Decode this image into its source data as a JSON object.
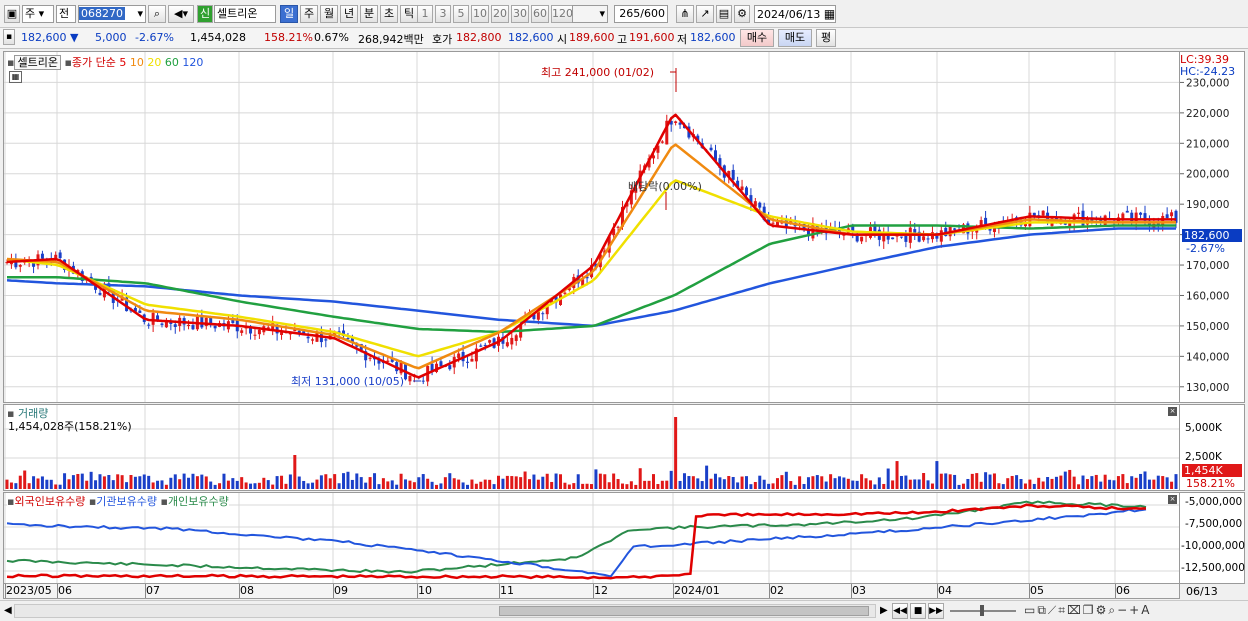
{
  "toolbar": {
    "market_type": "주",
    "prev_label": "전",
    "stock_code": "068270",
    "new_badge": "신",
    "stock_name": "셀트리온",
    "periods": [
      "일",
      "주",
      "월",
      "년",
      "분",
      "초",
      "틱"
    ],
    "selected_period": "일",
    "intervals": [
      "1",
      "3",
      "5",
      "10",
      "20",
      "30",
      "60",
      "120"
    ],
    "count": "265",
    "count_total": "/600",
    "date": "2024/06/13"
  },
  "quote": {
    "price": "182,600",
    "change": "5,000",
    "change_pct": "-2.67%",
    "volume": "1,454,028",
    "volume_ratio": "158.21%",
    "turnover": "0.67%",
    "amount": "268,942백만",
    "bid_label": "호가",
    "bid": "182,800",
    "ask": "182,600",
    "open_label": "시",
    "open": "189,600",
    "high_label": "고",
    "high": "191,600",
    "low_label": "저",
    "low": "182,600",
    "buy_label": "매수",
    "sell_label": "매도",
    "avg_label": "평"
  },
  "price_panel": {
    "title": "셀트리온",
    "ma_title": "종가 단순",
    "ma_periods": [
      "5",
      "10",
      "20",
      "60",
      "120"
    ],
    "ma_colors": [
      "#e00000",
      "#f08a10",
      "#f0e000",
      "#21a040",
      "#2255dd"
    ],
    "lc": "LC:39.39",
    "hc": "HC:-24.23",
    "high_note": "최고 241,000 (01/02)",
    "low_note": "최저 131,000 (10/05)",
    "dividend_note": "배당락(0.00%)",
    "last_price": "182,600",
    "last_pct": "-2.67%",
    "y_ticks": [
      "230,000",
      "220,000",
      "210,000",
      "200,000",
      "190,000",
      "180,000",
      "170,000",
      "160,000",
      "150,000",
      "140,000",
      "130,000"
    ]
  },
  "volume_panel": {
    "title": "거래량",
    "info": "1,454,028주(158.21%)",
    "y_ticks": [
      "5,000K",
      "2,500K"
    ],
    "last_label": "1,454K",
    "last_pct": "158.21%"
  },
  "holdings_panel": {
    "series_labels": [
      "외국인보유수량",
      "기관보유수량",
      "개인보유수량"
    ],
    "series_colors": [
      "#e00000",
      "#2255dd",
      "#2a8a4a"
    ],
    "y_ticks": [
      "-5,000,000",
      "-7,500,000",
      "-10,000,000",
      "-12,500,000"
    ]
  },
  "x_axis": {
    "labels": [
      "2023/05",
      "06",
      "07",
      "08",
      "09",
      "10",
      "11",
      "12",
      "2024/01",
      "02",
      "03",
      "04",
      "05",
      "06"
    ],
    "last_date": "06/13"
  },
  "chart_data": {
    "type": "line",
    "title": "셀트리온",
    "x": [
      "2023/05",
      "06",
      "07",
      "08",
      "09",
      "10",
      "11",
      "12",
      "2024/01",
      "02",
      "03",
      "04",
      "05",
      "06"
    ],
    "ylim": [
      125000,
      240000
    ],
    "series": [
      {
        "name": "5",
        "values": [
          171000,
          172000,
          152000,
          150000,
          146000,
          133000,
          145000,
          170000,
          220000,
          183000,
          180000,
          180000,
          186000,
          185000
        ]
      },
      {
        "name": "10",
        "values": [
          172000,
          171000,
          155000,
          152000,
          147000,
          136000,
          148000,
          168000,
          210000,
          185000,
          180000,
          180000,
          185000,
          184000
        ]
      },
      {
        "name": "20",
        "values": [
          172000,
          170000,
          157000,
          153000,
          148000,
          140000,
          148000,
          165000,
          198000,
          186000,
          181000,
          180000,
          184000,
          184000
        ]
      },
      {
        "name": "60",
        "values": [
          166000,
          166000,
          164000,
          158000,
          153000,
          149000,
          148000,
          150000,
          160000,
          177000,
          183000,
          183000,
          182000,
          183000
        ]
      },
      {
        "name": "120",
        "values": [
          165000,
          164000,
          163000,
          160000,
          158000,
          155000,
          152000,
          150000,
          155000,
          164000,
          170000,
          176000,
          180000,
          182000
        ]
      }
    ]
  }
}
